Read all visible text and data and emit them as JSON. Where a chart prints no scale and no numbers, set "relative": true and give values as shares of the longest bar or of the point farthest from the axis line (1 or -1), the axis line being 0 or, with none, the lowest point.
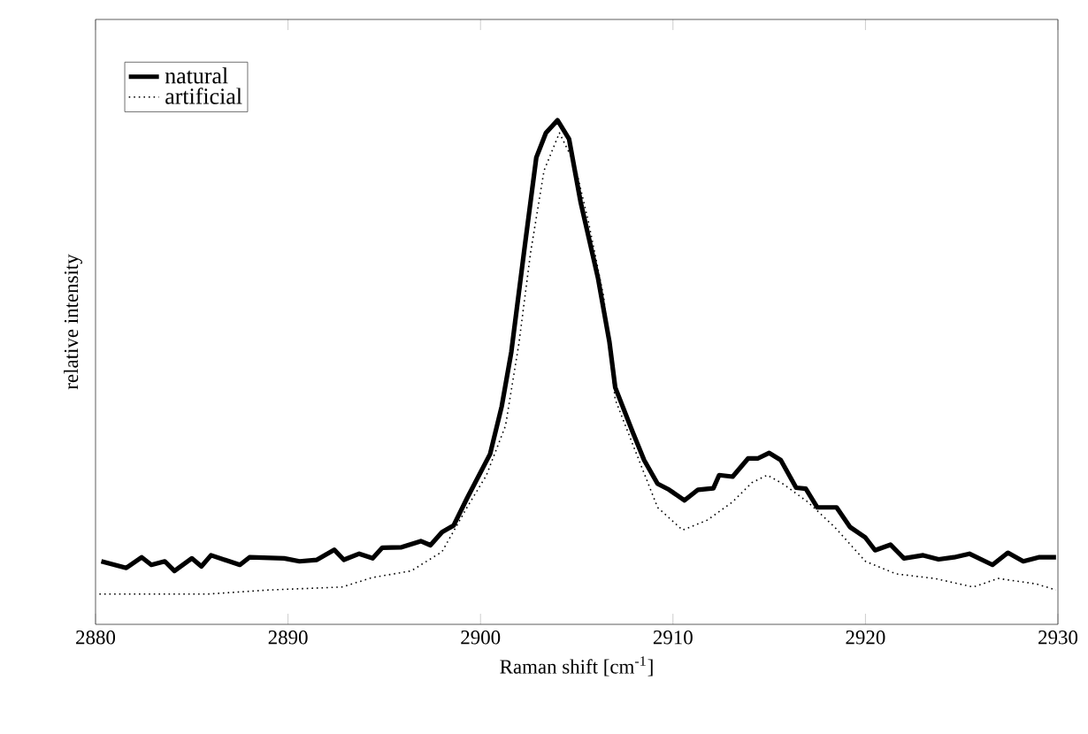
{
  "chart_data": {
    "type": "line",
    "relative": true,
    "xlabel": "Raman shift  [cm$^{-1}$]",
    "ylabel": "relative intensity",
    "xlim": [
      2880,
      2930
    ],
    "xticks": [
      2880,
      2890,
      2900,
      2910,
      2920,
      2930
    ],
    "legend": "top left",
    "grid": false,
    "marker": "none",
    "series": [
      {
        "name": "natural",
        "color": "#000000",
        "line_style": "solid",
        "x": [
          2880.3,
          2881.6,
          2882.4,
          2882.9,
          2883.6,
          2884.1,
          2885.0,
          2885.5,
          2886.0,
          2887.5,
          2888.0,
          2889.8,
          2890.6,
          2891.5,
          2892.4,
          2892.9,
          2893.7,
          2894.4,
          2894.9,
          2895.9,
          2896.9,
          2897.4,
          2898.0,
          2898.6,
          2899.3,
          2900.5,
          2901.1,
          2901.6,
          2902.3,
          2902.9,
          2903.4,
          2904.0,
          2904.6,
          2905.2,
          2906.1,
          2906.7,
          2907.0,
          2907.9,
          2908.5,
          2909.2,
          2909.8,
          2910.6,
          2911.3,
          2912.1,
          2912.4,
          2913.1,
          2913.9,
          2914.4,
          2915.0,
          2915.6,
          2916.4,
          2916.9,
          2917.5,
          2918.5,
          2919.2,
          2920.0,
          2920.5,
          2921.3,
          2922.0,
          2923.0,
          2923.8,
          2924.6,
          2925.4,
          2926.6,
          2927.4,
          2928.2,
          2929.0,
          2929.9
        ],
        "values": [
          0.125,
          0.112,
          0.133,
          0.118,
          0.125,
          0.106,
          0.131,
          0.115,
          0.137,
          0.118,
          0.133,
          0.131,
          0.125,
          0.128,
          0.148,
          0.128,
          0.14,
          0.131,
          0.152,
          0.153,
          0.165,
          0.157,
          0.183,
          0.196,
          0.25,
          0.338,
          0.432,
          0.54,
          0.75,
          0.926,
          0.975,
          1.0,
          0.963,
          0.838,
          0.688,
          0.56,
          0.47,
          0.382,
          0.326,
          0.279,
          0.267,
          0.246,
          0.267,
          0.27,
          0.296,
          0.293,
          0.329,
          0.329,
          0.34,
          0.326,
          0.271,
          0.269,
          0.232,
          0.232,
          0.193,
          0.172,
          0.147,
          0.158,
          0.131,
          0.137,
          0.129,
          0.133,
          0.14,
          0.118,
          0.142,
          0.125,
          0.133,
          0.133
        ]
      },
      {
        "name": "artificial",
        "color": "#000000",
        "line_style": "dotted",
        "x": [
          2880.2,
          2885.8,
          2888.9,
          2892.8,
          2894.4,
          2896.4,
          2898.0,
          2899.3,
          2900.3,
          2901.3,
          2902.0,
          2902.6,
          2903.3,
          2904.1,
          2904.9,
          2905.6,
          2906.4,
          2907.0,
          2907.9,
          2909.2,
          2910.5,
          2911.8,
          2913.1,
          2914.1,
          2914.9,
          2915.7,
          2917.0,
          2918.4,
          2920.0,
          2921.6,
          2923.6,
          2925.6,
          2926.9,
          2928.9,
          2929.9
        ],
        "values": [
          0.06,
          0.06,
          0.068,
          0.074,
          0.093,
          0.106,
          0.144,
          0.232,
          0.295,
          0.394,
          0.558,
          0.737,
          0.9,
          0.975,
          0.913,
          0.8,
          0.65,
          0.446,
          0.358,
          0.232,
          0.187,
          0.207,
          0.243,
          0.281,
          0.296,
          0.279,
          0.243,
          0.193,
          0.125,
          0.1,
          0.091,
          0.074,
          0.091,
          0.08,
          0.068
        ]
      }
    ]
  }
}
